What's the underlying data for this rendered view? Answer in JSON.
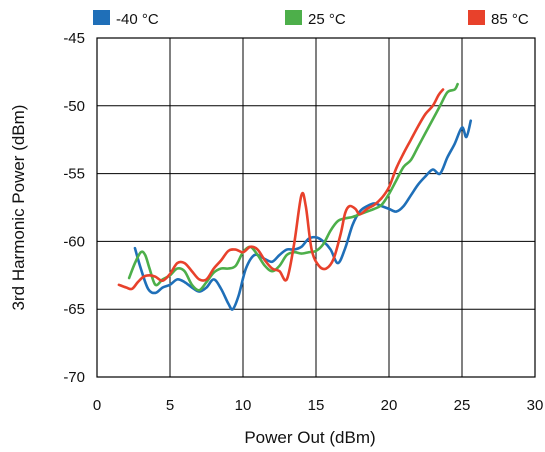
{
  "chart_data": {
    "type": "line",
    "title": "",
    "xlabel": "Power Out (dBm)",
    "ylabel": "3rd Harmonic Power (dBm)",
    "xlim": [
      0,
      30
    ],
    "ylim": [
      -70,
      -45
    ],
    "x_ticks": [
      0,
      5,
      10,
      15,
      20,
      25,
      30
    ],
    "y_ticks": [
      -45,
      -50,
      -55,
      -60,
      -65,
      -70
    ],
    "x_tick_labels": [
      "0",
      "5",
      "10",
      "15",
      "20",
      "25",
      "30"
    ],
    "y_tick_labels": [
      "-45",
      "-50",
      "-55",
      "-60",
      "-65",
      "-70"
    ],
    "grid": true,
    "legend_position": "top",
    "series": [
      {
        "name": "-40 °C",
        "color": "#1f6fb8",
        "points": [
          [
            2.6,
            -60.5
          ],
          [
            3.0,
            -62.0
          ],
          [
            3.5,
            -63.5
          ],
          [
            4.0,
            -63.8
          ],
          [
            4.5,
            -63.4
          ],
          [
            5.0,
            -63.2
          ],
          [
            5.5,
            -62.8
          ],
          [
            6.0,
            -63.0
          ],
          [
            6.5,
            -63.4
          ],
          [
            7.0,
            -63.7
          ],
          [
            7.5,
            -63.4
          ],
          [
            8.0,
            -62.8
          ],
          [
            8.5,
            -63.5
          ],
          [
            9.0,
            -64.6
          ],
          [
            9.3,
            -65.0
          ],
          [
            9.7,
            -64.0
          ],
          [
            10.2,
            -62.0
          ],
          [
            10.8,
            -61.0
          ],
          [
            11.5,
            -61.3
          ],
          [
            12.0,
            -61.5
          ],
          [
            12.5,
            -61.0
          ],
          [
            13.0,
            -60.6
          ],
          [
            13.5,
            -60.6
          ],
          [
            14.0,
            -60.4
          ],
          [
            14.5,
            -59.8
          ],
          [
            15.0,
            -59.7
          ],
          [
            15.5,
            -60.0
          ],
          [
            16.0,
            -60.6
          ],
          [
            16.5,
            -61.6
          ],
          [
            17.0,
            -60.5
          ],
          [
            17.5,
            -58.8
          ],
          [
            18.0,
            -57.8
          ],
          [
            18.5,
            -57.4
          ],
          [
            19.0,
            -57.2
          ],
          [
            19.5,
            -57.4
          ],
          [
            20.0,
            -57.6
          ],
          [
            20.5,
            -57.8
          ],
          [
            21.0,
            -57.4
          ],
          [
            21.5,
            -56.6
          ],
          [
            22.0,
            -55.8
          ],
          [
            22.5,
            -55.2
          ],
          [
            23.0,
            -54.7
          ],
          [
            23.5,
            -55.0
          ],
          [
            24.0,
            -53.8
          ],
          [
            24.5,
            -52.8
          ],
          [
            25.0,
            -51.6
          ],
          [
            25.3,
            -52.3
          ],
          [
            25.6,
            -51.1
          ]
        ]
      },
      {
        "name": "25 °C",
        "color": "#4daf4a",
        "points": [
          [
            2.2,
            -62.7
          ],
          [
            2.6,
            -61.6
          ],
          [
            3.0,
            -60.8
          ],
          [
            3.3,
            -61.0
          ],
          [
            3.6,
            -62.0
          ],
          [
            4.0,
            -63.2
          ],
          [
            4.5,
            -62.8
          ],
          [
            5.0,
            -62.5
          ],
          [
            5.5,
            -62.0
          ],
          [
            6.0,
            -62.2
          ],
          [
            6.5,
            -63.2
          ],
          [
            7.0,
            -63.6
          ],
          [
            7.5,
            -63.0
          ],
          [
            8.0,
            -62.3
          ],
          [
            8.5,
            -62.0
          ],
          [
            9.0,
            -62.0
          ],
          [
            9.5,
            -61.8
          ],
          [
            10.0,
            -60.8
          ],
          [
            10.5,
            -60.4
          ],
          [
            11.0,
            -61.0
          ],
          [
            11.5,
            -61.8
          ],
          [
            12.0,
            -62.2
          ],
          [
            12.5,
            -61.8
          ],
          [
            13.0,
            -61.0
          ],
          [
            13.5,
            -60.8
          ],
          [
            14.0,
            -60.9
          ],
          [
            14.5,
            -60.8
          ],
          [
            15.0,
            -60.7
          ],
          [
            15.5,
            -60.2
          ],
          [
            16.0,
            -59.2
          ],
          [
            16.5,
            -58.5
          ],
          [
            17.0,
            -58.3
          ],
          [
            17.5,
            -58.2
          ],
          [
            18.0,
            -58.0
          ],
          [
            18.5,
            -57.8
          ],
          [
            19.0,
            -57.6
          ],
          [
            19.5,
            -57.3
          ],
          [
            20.0,
            -56.5
          ],
          [
            20.5,
            -55.5
          ],
          [
            21.0,
            -54.5
          ],
          [
            21.5,
            -54.0
          ],
          [
            22.0,
            -53.0
          ],
          [
            22.5,
            -52.0
          ],
          [
            23.0,
            -51.0
          ],
          [
            23.5,
            -50.0
          ],
          [
            24.0,
            -49.0
          ],
          [
            24.5,
            -48.8
          ],
          [
            24.7,
            -48.4
          ]
        ]
      },
      {
        "name": "85 °C",
        "color": "#e8412b",
        "points": [
          [
            1.5,
            -63.2
          ],
          [
            2.0,
            -63.4
          ],
          [
            2.4,
            -63.5
          ],
          [
            2.8,
            -63.0
          ],
          [
            3.2,
            -62.6
          ],
          [
            3.6,
            -62.5
          ],
          [
            4.0,
            -62.6
          ],
          [
            4.5,
            -62.9
          ],
          [
            5.0,
            -62.4
          ],
          [
            5.5,
            -61.6
          ],
          [
            6.0,
            -61.6
          ],
          [
            6.5,
            -62.2
          ],
          [
            7.0,
            -62.8
          ],
          [
            7.5,
            -62.8
          ],
          [
            8.0,
            -62.0
          ],
          [
            8.5,
            -61.4
          ],
          [
            9.0,
            -60.7
          ],
          [
            9.5,
            -60.6
          ],
          [
            10.0,
            -60.8
          ],
          [
            10.5,
            -60.4
          ],
          [
            11.0,
            -60.6
          ],
          [
            11.5,
            -61.4
          ],
          [
            12.0,
            -62.0
          ],
          [
            12.5,
            -62.2
          ],
          [
            13.0,
            -62.8
          ],
          [
            13.5,
            -60.2
          ],
          [
            14.0,
            -56.6
          ],
          [
            14.3,
            -57.4
          ],
          [
            14.7,
            -60.6
          ],
          [
            15.2,
            -61.8
          ],
          [
            15.7,
            -62.0
          ],
          [
            16.2,
            -61.3
          ],
          [
            16.7,
            -59.4
          ],
          [
            17.0,
            -57.9
          ],
          [
            17.3,
            -57.4
          ],
          [
            17.7,
            -57.6
          ],
          [
            18.0,
            -58.0
          ],
          [
            18.5,
            -57.6
          ],
          [
            19.0,
            -57.3
          ],
          [
            19.5,
            -56.8
          ],
          [
            20.0,
            -56.0
          ],
          [
            20.5,
            -54.6
          ],
          [
            21.0,
            -53.5
          ],
          [
            21.5,
            -52.5
          ],
          [
            22.0,
            -51.5
          ],
          [
            22.5,
            -50.6
          ],
          [
            23.0,
            -50.0
          ],
          [
            23.4,
            -49.2
          ],
          [
            23.7,
            -48.8
          ]
        ]
      }
    ]
  }
}
